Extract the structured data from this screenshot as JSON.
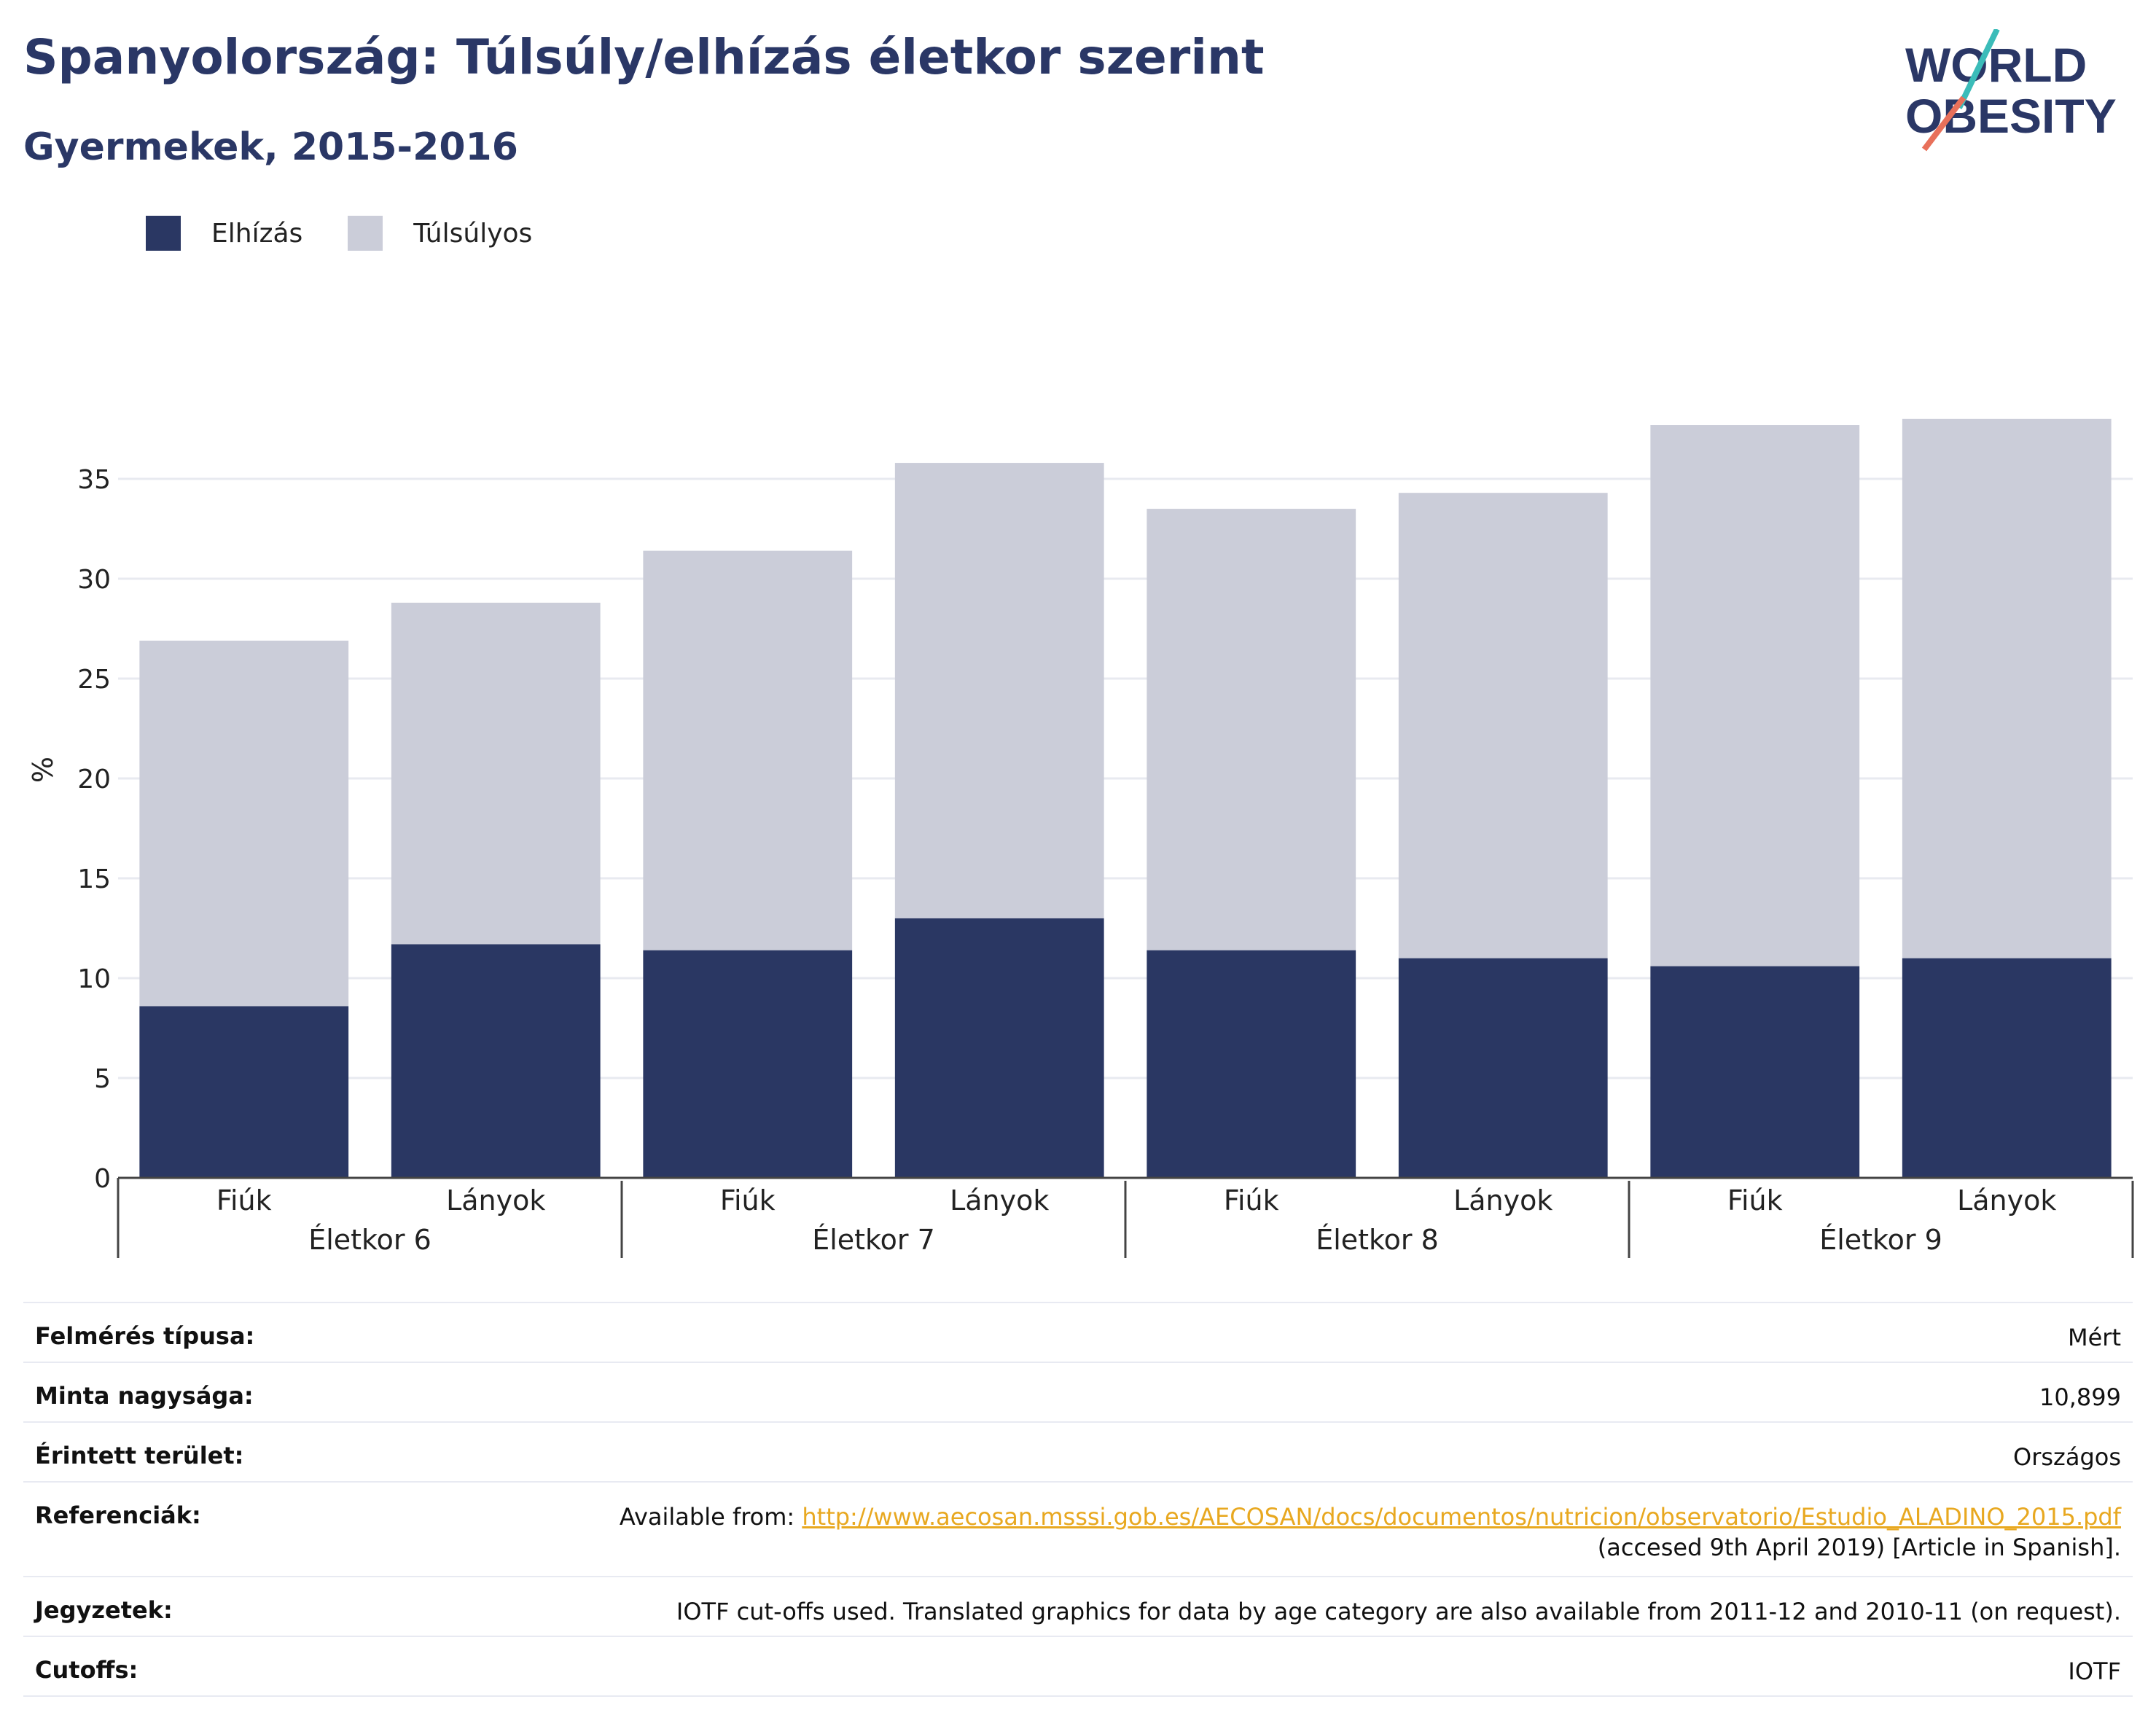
{
  "header": {
    "title": "Spanyolország: Túlsúly/elhízás életkor szerint",
    "subtitle": "Gyermekek, 2015-2016",
    "logo_line1": "WORLD",
    "logo_line2": "OBESITY"
  },
  "colors": {
    "elhizas": "#2a3763",
    "tulsulyos": "#cbcdd9",
    "title": "#2a3766",
    "link": "#e8a820"
  },
  "chart_data": {
    "type": "bar",
    "stacked": true,
    "ylabel": "%",
    "ylim": [
      0,
      40
    ],
    "yticks": [
      0,
      5,
      10,
      15,
      20,
      25,
      30,
      35
    ],
    "grid": true,
    "legend_position": "top-left",
    "groups": [
      "Életkor 6",
      "Életkor 7",
      "Életkor 8",
      "Életkor 9"
    ],
    "categories": [
      "Fiúk",
      "Lányok",
      "Fiúk",
      "Lányok",
      "Fiúk",
      "Lányok",
      "Fiúk",
      "Lányok"
    ],
    "series": [
      {
        "name": "Elhízás",
        "values": [
          8.6,
          11.7,
          11.4,
          13.0,
          11.4,
          11.0,
          10.6,
          11.0
        ]
      },
      {
        "name": "Túlsúlyos",
        "values": [
          18.3,
          17.1,
          20.0,
          22.8,
          22.1,
          23.3,
          27.1,
          27.0
        ]
      }
    ]
  },
  "info": {
    "rows": [
      {
        "label": "Felmérés típusa:",
        "value": "Mért"
      },
      {
        "label": "Minta nagysága:",
        "value": "10,899"
      },
      {
        "label": "Érintett terület:",
        "value": "Országos"
      },
      {
        "label": "Referenciák:",
        "value_prefix": "Available from: ",
        "link": "http://www.aecosan.msssi.gob.es/AECOSAN/docs/documentos/nutricion/observatorio/Estudio_ALADINO_2015.pdf",
        "value_suffix": "(accesed 9th April 2019) [Article in Spanish]."
      },
      {
        "label": "Jegyzetek:",
        "value": "IOTF cut-offs used. Translated graphics for data by age category are also available from 2011-12 and 2010-11 (on request)."
      },
      {
        "label": "Cutoffs:",
        "value": "IOTF"
      }
    ]
  }
}
